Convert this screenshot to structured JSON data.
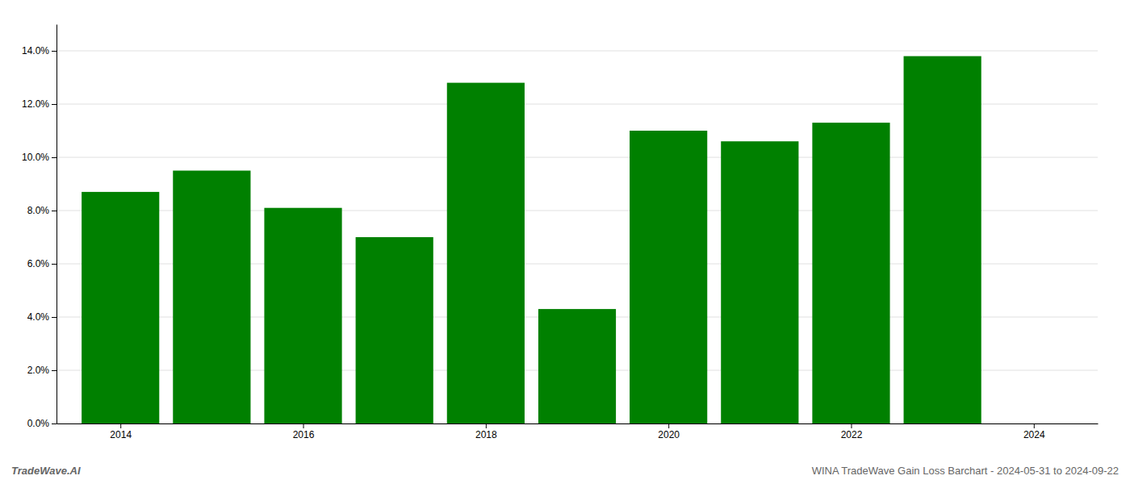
{
  "chart_data": {
    "type": "bar",
    "x": [
      2014,
      2015,
      2016,
      2017,
      2018,
      2019,
      2020,
      2021,
      2022,
      2023
    ],
    "values": [
      0.087,
      0.095,
      0.081,
      0.07,
      0.128,
      0.043,
      0.11,
      0.106,
      0.113,
      0.138
    ],
    "color": "#008000",
    "xlim": [
      2013.3,
      2024.7
    ],
    "xticks": [
      2014,
      2016,
      2018,
      2020,
      2022,
      2024
    ],
    "ylim": [
      0,
      0.15
    ],
    "yticks": [
      {
        "value": 0.0,
        "label": "0.0%"
      },
      {
        "value": 0.02,
        "label": "2.0%"
      },
      {
        "value": 0.04,
        "label": "4.0%"
      },
      {
        "value": 0.06,
        "label": "6.0%"
      },
      {
        "value": 0.08,
        "label": "8.0%"
      },
      {
        "value": 0.1,
        "label": "10.0%"
      },
      {
        "value": 0.12,
        "label": "12.0%"
      },
      {
        "value": 0.14,
        "label": "14.0%"
      }
    ],
    "grid": true,
    "annotations": [
      "TradeWave.AI",
      "WINA TradeWave Gain Loss Barchart - 2024-05-31 to 2024-09-22"
    ]
  }
}
